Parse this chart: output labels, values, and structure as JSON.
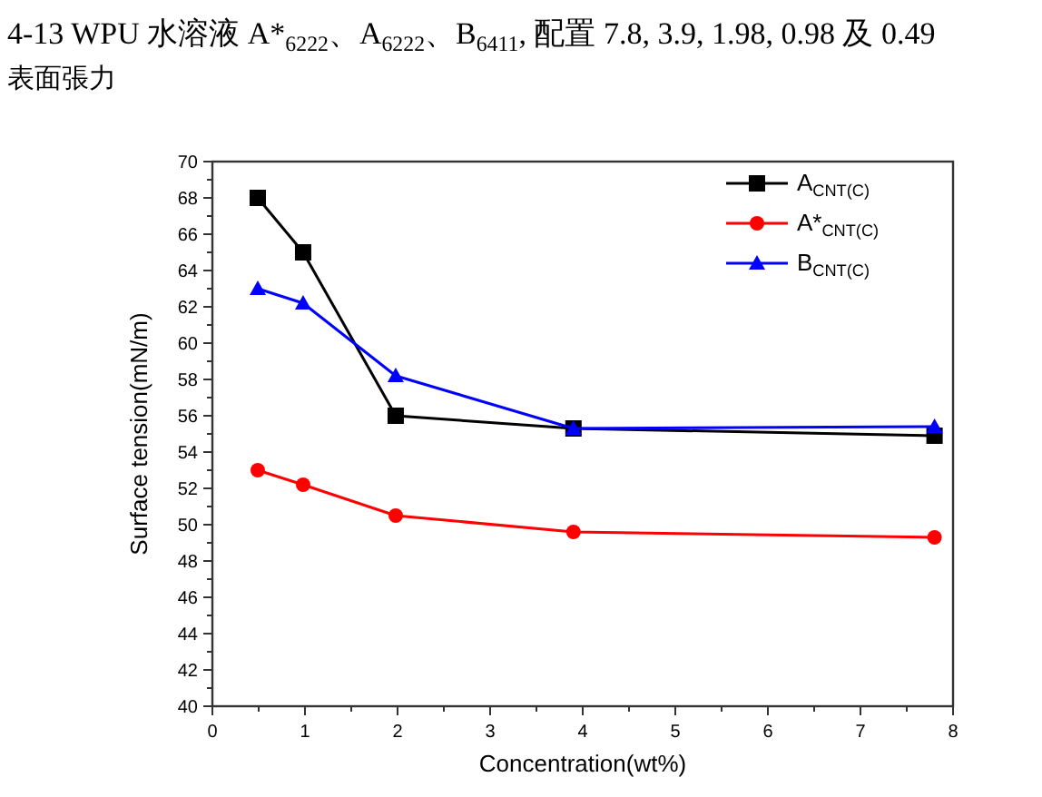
{
  "chart_data": {
    "type": "line",
    "title": "4-13 WPU 水溶液 A*$_{6222}$、A$_{6222}$、B$_{6411}$, 配置 7.8, 3.9, 1.98, 0.98 及 0.49",
    "subtitle": "表面張力",
    "xlabel": "Concentration(wt%)",
    "ylabel": "Surface tension(mN/m)",
    "x": [
      0.49,
      0.98,
      1.98,
      3.9,
      7.8
    ],
    "xlim": [
      0,
      8
    ],
    "xticks": [
      0,
      1,
      2,
      3,
      4,
      5,
      6,
      7,
      8
    ],
    "ylim": [
      40,
      70
    ],
    "yticks": [
      40,
      42,
      44,
      46,
      48,
      50,
      52,
      54,
      56,
      58,
      60,
      62,
      64,
      66,
      68,
      70
    ],
    "grid": false,
    "legend": "top right",
    "line_style": "solid",
    "series": [
      {
        "name": "A$_{CNT(C)}$",
        "color": "#000000",
        "marker": "square",
        "values": [
          68,
          65,
          56,
          55.3,
          54.9
        ]
      },
      {
        "name": "A*$_{CNT(C)}$",
        "color": "#ff0000",
        "marker": "circle",
        "values": [
          53,
          52.2,
          50.5,
          49.6,
          49.3
        ]
      },
      {
        "name": "B$_{CNT(C)}$",
        "color": "#0000ff",
        "marker": "triangle",
        "values": [
          63,
          62.2,
          58.2,
          55.3,
          55.4
        ]
      }
    ]
  }
}
